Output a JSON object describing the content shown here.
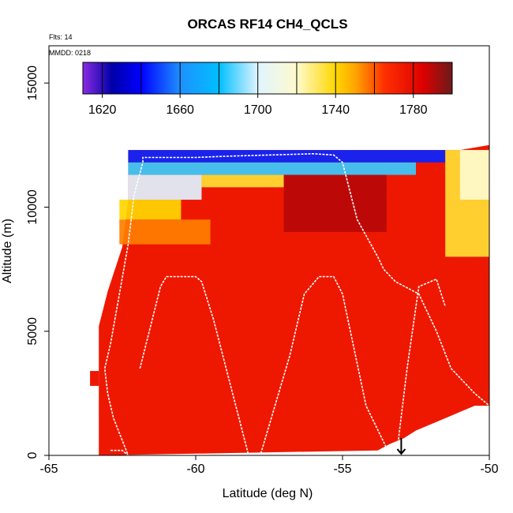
{
  "chart_data": {
    "type": "heatmap",
    "title": "ORCAS RF14 CH4_QCLS",
    "xlabel": "Latitude (deg N)",
    "ylabel": "Altitude (m)",
    "xlim": [
      -65,
      -50
    ],
    "ylim": [
      0,
      16500
    ],
    "x_ticks": [
      -65,
      -60,
      -55,
      -50
    ],
    "x_tick_labels": [
      "-65",
      "-60",
      "-55",
      "-50"
    ],
    "y_ticks": [
      0,
      5000,
      10000,
      15000
    ],
    "y_tick_labels": [
      "0",
      "5000",
      "10000",
      "15000"
    ],
    "annotations": {
      "flights": "Flts: 14",
      "date": "MMDD: 0218"
    },
    "colorbar": {
      "range": [
        1610,
        1800
      ],
      "tick_values": [
        1620,
        1660,
        1700,
        1740,
        1780
      ],
      "tick_labels": [
        "1620",
        "1660",
        "1700",
        "1740",
        "1780"
      ],
      "stops": [
        {
          "v": 1610,
          "color": "#8a2be2"
        },
        {
          "v": 1625,
          "color": "#0000a8"
        },
        {
          "v": 1640,
          "color": "#0000ff"
        },
        {
          "v": 1660,
          "color": "#1e90ff"
        },
        {
          "v": 1680,
          "color": "#00bfff"
        },
        {
          "v": 1700,
          "color": "#e0f4ff"
        },
        {
          "v": 1720,
          "color": "#fffacd"
        },
        {
          "v": 1740,
          "color": "#ffd700"
        },
        {
          "v": 1750,
          "color": "#ffa500"
        },
        {
          "v": 1765,
          "color": "#ff3000"
        },
        {
          "v": 1785,
          "color": "#dd0000"
        },
        {
          "v": 1800,
          "color": "#6b1a1a"
        }
      ]
    },
    "field": {
      "description_units": "CH4 ppb binned by latitude and altitude",
      "background_value": 1775,
      "upper_edge": [
        {
          "lat": -63.3,
          "alt": 0
        },
        {
          "lat": -63.3,
          "alt": 5200
        },
        {
          "lat": -63.0,
          "alt": 6600
        },
        {
          "lat": -62.5,
          "alt": 8400
        },
        {
          "lat": -62.3,
          "alt": 10300
        },
        {
          "lat": -62.3,
          "alt": 12300
        },
        {
          "lat": -51.0,
          "alt": 12300
        },
        {
          "lat": -50.0,
          "alt": 12500
        },
        {
          "lat": -50.0,
          "alt": 2000
        }
      ],
      "right_stairs": [
        {
          "lat": -50.5,
          "alt": 2000
        },
        {
          "lat": -50.9,
          "alt": 1800
        },
        {
          "lat": -51.3,
          "alt": 1600
        },
        {
          "lat": -51.7,
          "alt": 1400
        },
        {
          "lat": -52.1,
          "alt": 1200
        },
        {
          "lat": -52.5,
          "alt": 1000
        },
        {
          "lat": -52.9,
          "alt": 700
        },
        {
          "lat": -53.4,
          "alt": 450
        },
        {
          "lat": -53.8,
          "alt": 200
        }
      ],
      "layers": [
        {
          "alt_min": 11800,
          "alt_max": 12300,
          "lat_min": -62.3,
          "lat_max": -51.5,
          "value": 1645
        },
        {
          "alt_min": 11300,
          "alt_max": 11800,
          "lat_min": -62.3,
          "lat_max": -52.5,
          "value": 1685
        },
        {
          "alt_min": 10300,
          "alt_max": 11300,
          "lat_min": -62.3,
          "lat_max": -59.8,
          "value": 1700
        },
        {
          "alt_min": 10800,
          "alt_max": 11300,
          "lat_min": -59.8,
          "lat_max": -57.0,
          "value": 1735
        },
        {
          "alt_min": 9500,
          "alt_max": 10300,
          "lat_min": -62.6,
          "lat_max": -60.5,
          "value": 1740
        },
        {
          "alt_min": 8500,
          "alt_max": 9500,
          "lat_min": -62.6,
          "lat_max": -59.5,
          "value": 1755
        },
        {
          "alt_min": 9000,
          "alt_max": 11300,
          "lat_min": -57.0,
          "lat_max": -53.5,
          "value": 1790
        },
        {
          "alt_min": 8000,
          "alt_max": 12300,
          "lat_min": -51.5,
          "lat_max": -50.0,
          "value": 1735
        },
        {
          "alt_min": 10300,
          "alt_max": 12300,
          "lat_min": -51.0,
          "lat_max": -50.0,
          "value": 1720
        }
      ]
    },
    "flight_track": [
      [
        -62.9,
        200
      ],
      [
        -62.5,
        200
      ],
      [
        -62.3,
        0
      ],
      [
        -62.8,
        1500
      ],
      [
        -63.0,
        2500
      ],
      [
        -63.1,
        3500
      ],
      [
        -62.9,
        4500
      ],
      [
        -62.6,
        6500
      ],
      [
        -62.3,
        8500
      ],
      [
        -62.1,
        10500
      ],
      [
        -61.8,
        11800
      ],
      [
        -61.8,
        12000
      ],
      [
        -60.0,
        12000
      ],
      [
        -59.0,
        12050
      ],
      [
        -57.5,
        12100
      ],
      [
        -56.0,
        12150
      ],
      [
        -55.3,
        12100
      ],
      [
        -55.0,
        11800
      ],
      [
        -54.5,
        9500
      ],
      [
        -53.8,
        8000
      ],
      [
        -53.6,
        7500
      ],
      [
        -53.2,
        7000
      ],
      [
        -52.4,
        6500
      ],
      [
        -51.8,
        5000
      ],
      [
        -51.3,
        3500
      ],
      [
        -50.5,
        2500
      ],
      [
        -50.0,
        2000
      ]
    ],
    "flight_track_2": [
      [
        -61.9,
        3500
      ],
      [
        -61.2,
        6800
      ],
      [
        -61.0,
        7200
      ],
      [
        -60.0,
        7200
      ],
      [
        -59.8,
        7000
      ],
      [
        -59.4,
        5500
      ],
      [
        -58.2,
        0
      ],
      [
        -57.8,
        0
      ],
      [
        -56.8,
        4000
      ],
      [
        -56.3,
        6500
      ],
      [
        -55.8,
        7200
      ],
      [
        -55.3,
        7200
      ],
      [
        -55.0,
        6500
      ],
      [
        -54.2,
        2000
      ],
      [
        -53.5,
        300
      ],
      [
        -53.2,
        300
      ],
      [
        -53.1,
        600
      ],
      [
        -52.8,
        3500
      ],
      [
        -52.4,
        6800
      ],
      [
        -51.8,
        7100
      ],
      [
        -51.5,
        6000
      ]
    ],
    "marker": {
      "lat": -53.0,
      "alt": 0,
      "symbol": "down-arrow"
    }
  }
}
